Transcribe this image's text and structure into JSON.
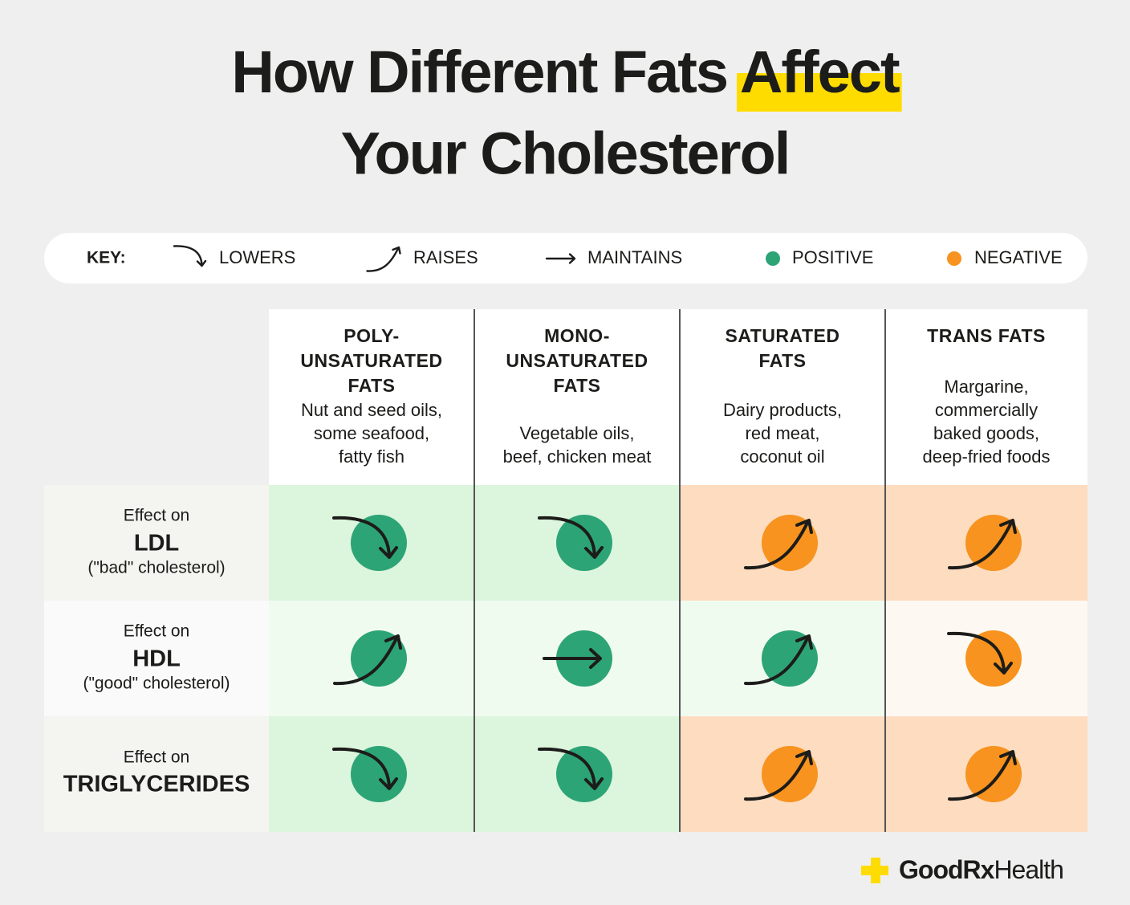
{
  "title": {
    "before": "How Different Fats",
    "highlight": "Affect",
    "line2": "Your Cholesterol"
  },
  "key": {
    "label": "KEY:",
    "items": [
      {
        "label": "LOWERS",
        "icon": "lowers"
      },
      {
        "label": "RAISES",
        "icon": "raises"
      },
      {
        "label": "MAINTAINS",
        "icon": "maintains"
      },
      {
        "label": "POSITIVE",
        "tone": "positive",
        "color": "#2ca476"
      },
      {
        "label": "NEGATIVE",
        "tone": "negative",
        "color": "#f7931e"
      }
    ]
  },
  "table": {
    "columns": [
      {
        "name": [
          "POLY-",
          "UNSATURATED",
          "FATS"
        ],
        "foods": [
          "Nut and seed oils,",
          "some seafood,",
          "fatty fish"
        ]
      },
      {
        "name": [
          "MONO-",
          "UNSATURATED",
          "FATS"
        ],
        "foods": [
          "Vegetable oils,",
          "beef, chicken meat"
        ]
      },
      {
        "name": [
          "SATURATED",
          "FATS"
        ],
        "foods": [
          "Dairy products,",
          "red meat,",
          "coconut oil"
        ]
      },
      {
        "name": [
          "TRANS FATS"
        ],
        "foods": [
          "Margarine,",
          "commercially",
          "baked goods,",
          "deep-fried foods"
        ]
      }
    ],
    "rows": [
      {
        "label": [
          "Effect on",
          "LDL",
          "(\"bad\" cholesterol)"
        ],
        "cells": [
          {
            "effect": "lowers",
            "tone": "positive"
          },
          {
            "effect": "lowers",
            "tone": "positive"
          },
          {
            "effect": "raises",
            "tone": "negative"
          },
          {
            "effect": "raises",
            "tone": "negative"
          }
        ]
      },
      {
        "label": [
          "Effect on",
          "HDL",
          "(\"good\" cholesterol)"
        ],
        "cells": [
          {
            "effect": "raises",
            "tone": "positive"
          },
          {
            "effect": "maintains",
            "tone": "positive"
          },
          {
            "effect": "raises",
            "tone": "positive"
          },
          {
            "effect": "lowers",
            "tone": "negative"
          }
        ]
      },
      {
        "label": [
          "Effect on",
          "TRIGLYCERIDES"
        ],
        "cells": [
          {
            "effect": "lowers",
            "tone": "positive"
          },
          {
            "effect": "lowers",
            "tone": "positive"
          },
          {
            "effect": "raises",
            "tone": "negative"
          },
          {
            "effect": "raises",
            "tone": "negative"
          }
        ]
      }
    ]
  },
  "logo": {
    "brand": "GoodRx",
    "suffix": "Health"
  }
}
